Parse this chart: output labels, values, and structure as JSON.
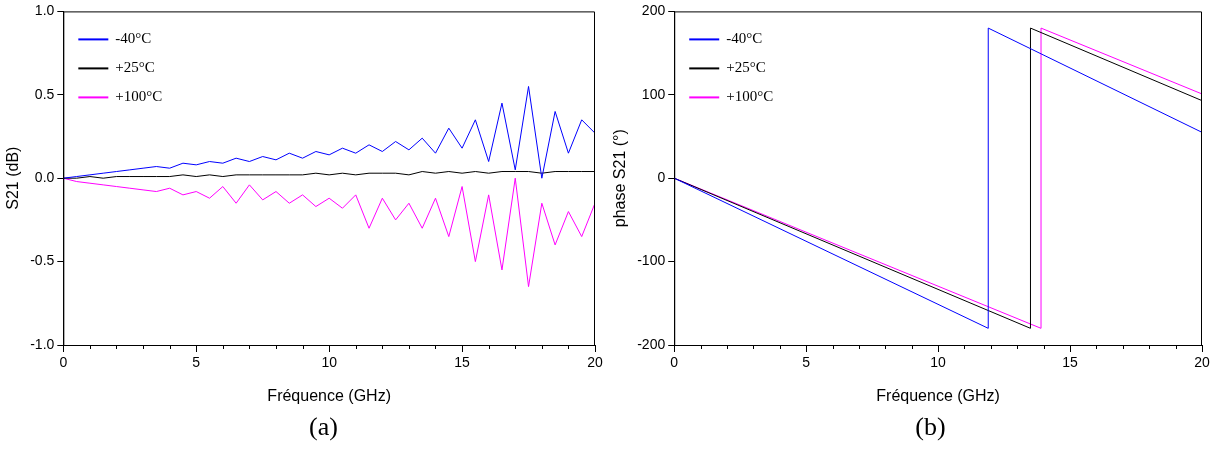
{
  "chart_data": [
    {
      "type": "line",
      "xlabel": "Fréquence (GHz)",
      "ylabel": "S21 (dB)",
      "annotations": [
        "(a)"
      ],
      "legend": "top left",
      "grid": false,
      "marker": "none",
      "line_style": "solid",
      "xlim": [
        0,
        20
      ],
      "ylim": [
        -1,
        1
      ],
      "xticks": [
        0,
        {
          "value": 1,
          "label": null
        },
        {
          "value": 2,
          "label": null
        },
        {
          "value": 3,
          "label": null
        },
        {
          "value": 4,
          "label": null
        },
        5,
        {
          "value": 6,
          "label": null
        },
        {
          "value": 7,
          "label": null
        },
        {
          "value": 8,
          "label": null
        },
        {
          "value": 9,
          "label": null
        },
        10,
        {
          "value": 11,
          "label": null
        },
        {
          "value": 12,
          "label": null
        },
        {
          "value": 13,
          "label": null
        },
        {
          "value": 14,
          "label": null
        },
        15,
        {
          "value": 16,
          "label": null
        },
        {
          "value": 17,
          "label": null
        },
        {
          "value": 18,
          "label": null
        },
        {
          "value": 19,
          "label": null
        },
        20
      ],
      "yticks": [
        {
          "value": -1,
          "label": "-1.0"
        },
        {
          "value": -0.5,
          "label": "-0.5"
        },
        {
          "value": 0,
          "label": "0.0"
        },
        {
          "value": 0.5,
          "label": "0.5"
        },
        {
          "value": 1,
          "label": "1.0"
        }
      ],
      "x": [
        0,
        0.5,
        1,
        1.5,
        2,
        2.5,
        3,
        3.5,
        4,
        4.5,
        5,
        5.5,
        6,
        6.5,
        7,
        7.5,
        8,
        8.5,
        9,
        9.5,
        10,
        10.5,
        11,
        11.5,
        12,
        12.5,
        13,
        13.5,
        14,
        14.5,
        15,
        15.5,
        16,
        16.5,
        17,
        17.5,
        18,
        18.5,
        19,
        19.5,
        20
      ],
      "series": [
        {
          "name": "-40°C",
          "color": "#0000ff",
          "values": [
            0,
            0.01,
            0.02,
            0.03,
            0.04,
            0.05,
            0.06,
            0.07,
            0.06,
            0.09,
            0.08,
            0.1,
            0.09,
            0.12,
            0.1,
            0.13,
            0.11,
            0.15,
            0.12,
            0.16,
            0.14,
            0.18,
            0.15,
            0.2,
            0.16,
            0.22,
            0.17,
            0.24,
            0.15,
            0.3,
            0.18,
            0.35,
            0.1,
            0.45,
            0.05,
            0.55,
            0.0,
            0.4,
            0.15,
            0.35,
            0.27
          ]
        },
        {
          "name": "+25°C",
          "color": "#000000",
          "values": [
            0,
            0,
            0.01,
            0,
            0.01,
            0.01,
            0.01,
            0.01,
            0.01,
            0.02,
            0.01,
            0.02,
            0.01,
            0.02,
            0.02,
            0.02,
            0.02,
            0.02,
            0.02,
            0.03,
            0.02,
            0.03,
            0.02,
            0.03,
            0.03,
            0.03,
            0.02,
            0.04,
            0.03,
            0.04,
            0.03,
            0.04,
            0.03,
            0.04,
            0.04,
            0.04,
            0.03,
            0.04,
            0.04,
            0.04,
            0.04
          ]
        },
        {
          "name": "+100°C",
          "color": "#ff00ff",
          "values": [
            0,
            -0.02,
            -0.03,
            -0.04,
            -0.05,
            -0.06,
            -0.07,
            -0.08,
            -0.06,
            -0.1,
            -0.08,
            -0.12,
            -0.05,
            -0.15,
            -0.04,
            -0.13,
            -0.08,
            -0.15,
            -0.1,
            -0.17,
            -0.12,
            -0.18,
            -0.1,
            -0.3,
            -0.12,
            -0.25,
            -0.15,
            -0.3,
            -0.12,
            -0.35,
            -0.05,
            -0.5,
            -0.1,
            -0.55,
            0.0,
            -0.65,
            -0.15,
            -0.4,
            -0.2,
            -0.35,
            -0.15
          ]
        }
      ]
    },
    {
      "type": "line",
      "xlabel": "Fréquence (GHz)",
      "ylabel": "phase S21 (°)",
      "annotations": [
        "(b)"
      ],
      "legend": "top left",
      "grid": false,
      "marker": "none",
      "line_style": "solid",
      "xlim": [
        0,
        20
      ],
      "ylim": [
        -200,
        200
      ],
      "xticks": [
        0,
        {
          "value": 1,
          "label": null
        },
        {
          "value": 2,
          "label": null
        },
        {
          "value": 3,
          "label": null
        },
        {
          "value": 4,
          "label": null
        },
        5,
        {
          "value": 6,
          "label": null
        },
        {
          "value": 7,
          "label": null
        },
        {
          "value": 8,
          "label": null
        },
        {
          "value": 9,
          "label": null
        },
        10,
        {
          "value": 11,
          "label": null
        },
        {
          "value": 12,
          "label": null
        },
        {
          "value": 13,
          "label": null
        },
        {
          "value": 14,
          "label": null
        },
        15,
        {
          "value": 16,
          "label": null
        },
        {
          "value": 17,
          "label": null
        },
        {
          "value": 18,
          "label": null
        },
        {
          "value": 19,
          "label": null
        },
        20
      ],
      "yticks": [
        -200,
        -100,
        0,
        100,
        200
      ],
      "series": [
        {
          "name": "-40°C",
          "color": "#0000ff",
          "x": [
            0,
            11.9,
            11.9,
            20
          ],
          "values": [
            0,
            -180,
            180,
            55
          ]
        },
        {
          "name": "+25°C",
          "color": "#000000",
          "x": [
            0,
            13.5,
            13.5,
            20
          ],
          "values": [
            0,
            -180,
            180,
            93
          ]
        },
        {
          "name": "+100°C",
          "color": "#ff00ff",
          "x": [
            0,
            13.9,
            13.9,
            20
          ],
          "values": [
            0,
            -180,
            180,
            101
          ]
        }
      ]
    }
  ]
}
